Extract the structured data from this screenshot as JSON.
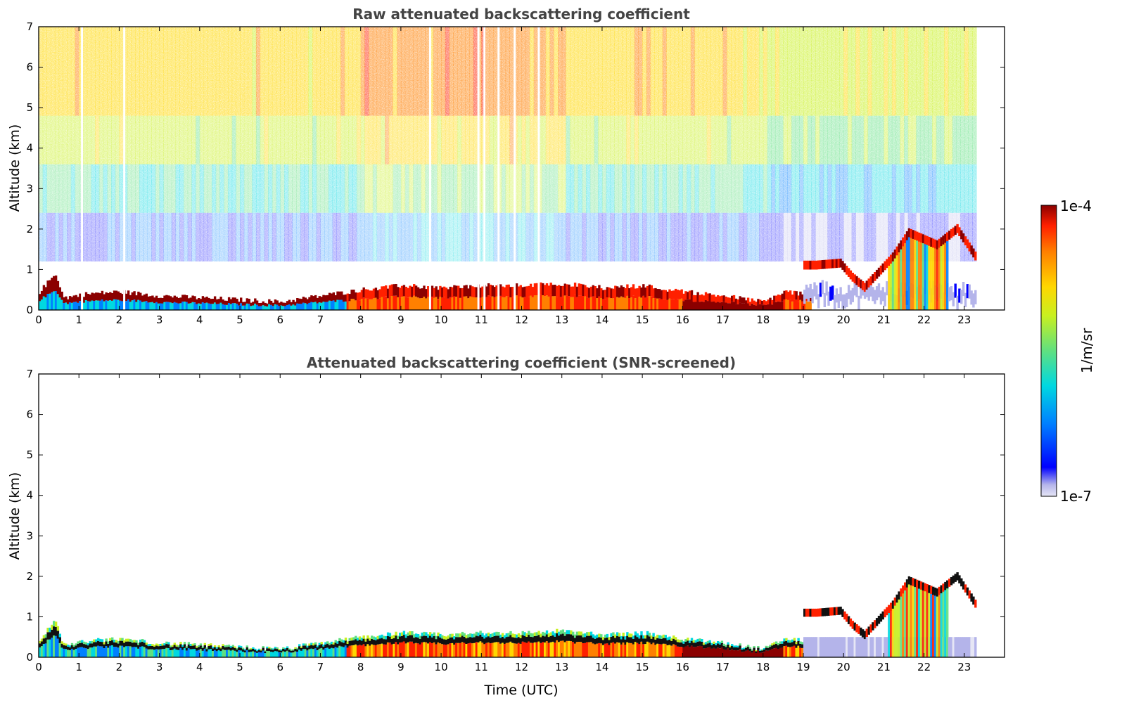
{
  "chart_data": [
    {
      "type": "heatmap",
      "title": "Raw attenuated backscattering coefficient",
      "xlabel": "",
      "ylabel": "Altitude (km)",
      "xlim": [
        0,
        24
      ],
      "ylim": [
        0,
        7
      ],
      "x_ticks": [
        "0",
        "1",
        "2",
        "3",
        "4",
        "5",
        "6",
        "7",
        "8",
        "9",
        "10",
        "11",
        "12",
        "13",
        "14",
        "15",
        "16",
        "17",
        "18",
        "19",
        "20",
        "21",
        "22",
        "23"
      ],
      "y_ticks": [
        "0",
        "1",
        "2",
        "3",
        "4",
        "5",
        "6",
        "7"
      ],
      "data_end_hour": 23.3,
      "dropout_hours": [
        1.05,
        2.1,
        9.7,
        10.9,
        11.05,
        11.4,
        11.8,
        12.4
      ],
      "layers": [
        {
          "name": "aerosol boundary layer top",
          "points": [
            [
              0,
              0.45
            ],
            [
              0.4,
              0.9
            ],
            [
              0.6,
              0.3
            ],
            [
              1.2,
              0.4
            ],
            [
              2,
              0.45
            ],
            [
              3,
              0.35
            ],
            [
              4,
              0.3
            ],
            [
              5,
              0.25
            ],
            [
              6,
              0.2
            ],
            [
              7,
              0.35
            ],
            [
              8,
              0.5
            ],
            [
              9,
              0.6
            ],
            [
              10,
              0.55
            ],
            [
              11,
              0.6
            ],
            [
              12,
              0.6
            ],
            [
              13,
              0.65
            ],
            [
              14,
              0.55
            ],
            [
              15,
              0.6
            ],
            [
              16,
              0.45
            ],
            [
              17,
              0.35
            ],
            [
              18,
              0.2
            ],
            [
              18.5,
              0.45
            ],
            [
              19,
              0.4
            ]
          ]
        },
        {
          "name": "elevated layer",
          "points": [
            [
              19.3,
              1.1
            ],
            [
              19.9,
              1.15
            ],
            [
              20.2,
              0.8
            ],
            [
              20.5,
              0.55
            ],
            [
              21.2,
              1.3
            ],
            [
              21.6,
              1.9
            ],
            [
              22.3,
              1.6
            ],
            [
              22.8,
              2.0
            ],
            [
              23.3,
              1.25
            ]
          ]
        }
      ]
    },
    {
      "type": "heatmap",
      "title": "Attenuated backscattering coefficient (SNR-screened)",
      "xlabel": "Time (UTC)",
      "ylabel": "Altitude (km)",
      "xlim": [
        0,
        24
      ],
      "ylim": [
        0,
        7
      ],
      "x_ticks": [
        "0",
        "1",
        "2",
        "3",
        "4",
        "5",
        "6",
        "7",
        "8",
        "9",
        "10",
        "11",
        "12",
        "13",
        "14",
        "15",
        "16",
        "17",
        "18",
        "19",
        "20",
        "21",
        "22",
        "23"
      ],
      "y_ticks": [
        "0",
        "1",
        "2",
        "3",
        "4",
        "5",
        "6",
        "7"
      ],
      "data_end_hour": 23.3
    }
  ],
  "colorbar": {
    "label": "1/m/sr",
    "max_label": "1e-4",
    "min_label": "1e-7",
    "scale": "log",
    "range": [
      1e-07,
      0.0001
    ],
    "colormap": [
      "#e6e6f5",
      "#b4b4ea",
      "#0000ff",
      "#0080ff",
      "#00d8e0",
      "#60e080",
      "#c8f020",
      "#ffd700",
      "#ff8000",
      "#ff2000",
      "#8b0000"
    ]
  }
}
